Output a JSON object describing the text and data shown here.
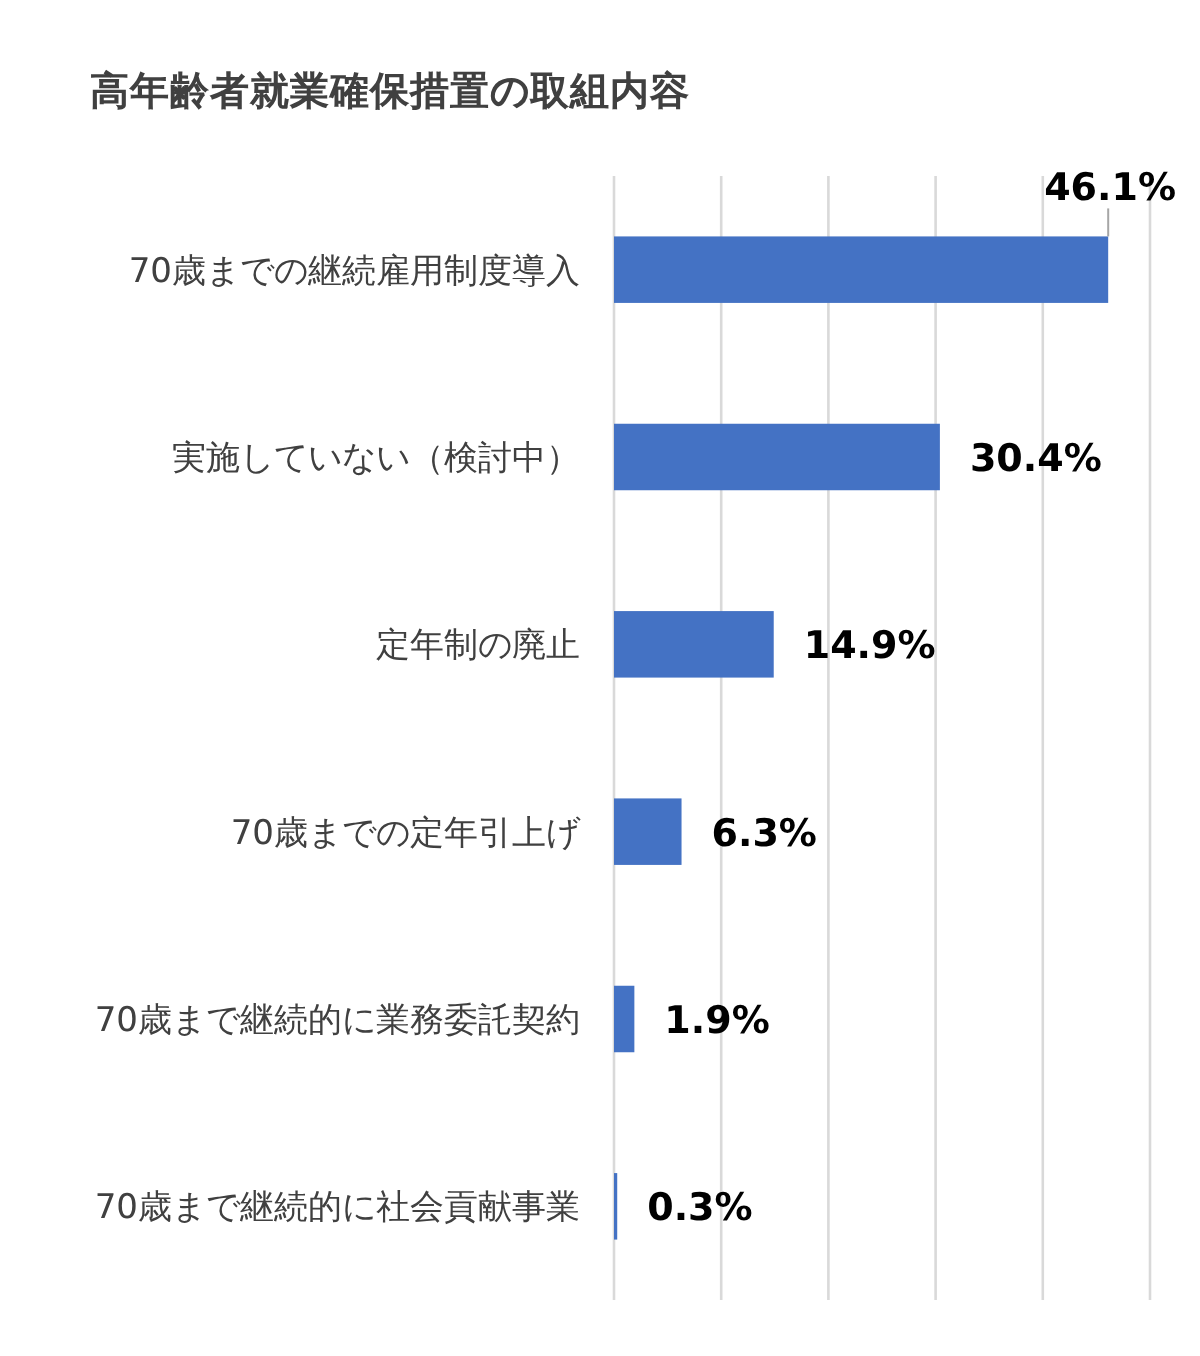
{
  "chart_data": {
    "type": "bar",
    "orientation": "horizontal",
    "title": "高年齢者就業確保措置の取組内容",
    "categories": [
      "70歳までの継続雇用制度導入",
      "実施していない（検討中）",
      "定年制の廃止",
      "70歳までの定年引上げ",
      "70歳まで継続的に業務委託契約",
      "70歳まで継続的に社会貢献事業"
    ],
    "values": [
      46.1,
      30.4,
      14.9,
      6.3,
      1.9,
      0.3
    ],
    "color": "#4472c4",
    "value_labels": [
      "46.1%",
      "30.4%",
      "14.9%",
      "6.3%",
      "1.9%",
      "0.3%"
    ],
    "xlim": [
      0,
      50
    ],
    "xticks": [
      {
        "value": 0,
        "label": null
      },
      {
        "value": 10,
        "label": null
      },
      {
        "value": 20,
        "label": null
      },
      {
        "value": 30,
        "label": null
      },
      {
        "value": 40,
        "label": null
      },
      {
        "value": 50,
        "label": null
      }
    ],
    "grid": "x",
    "tick_labels": "y"
  }
}
